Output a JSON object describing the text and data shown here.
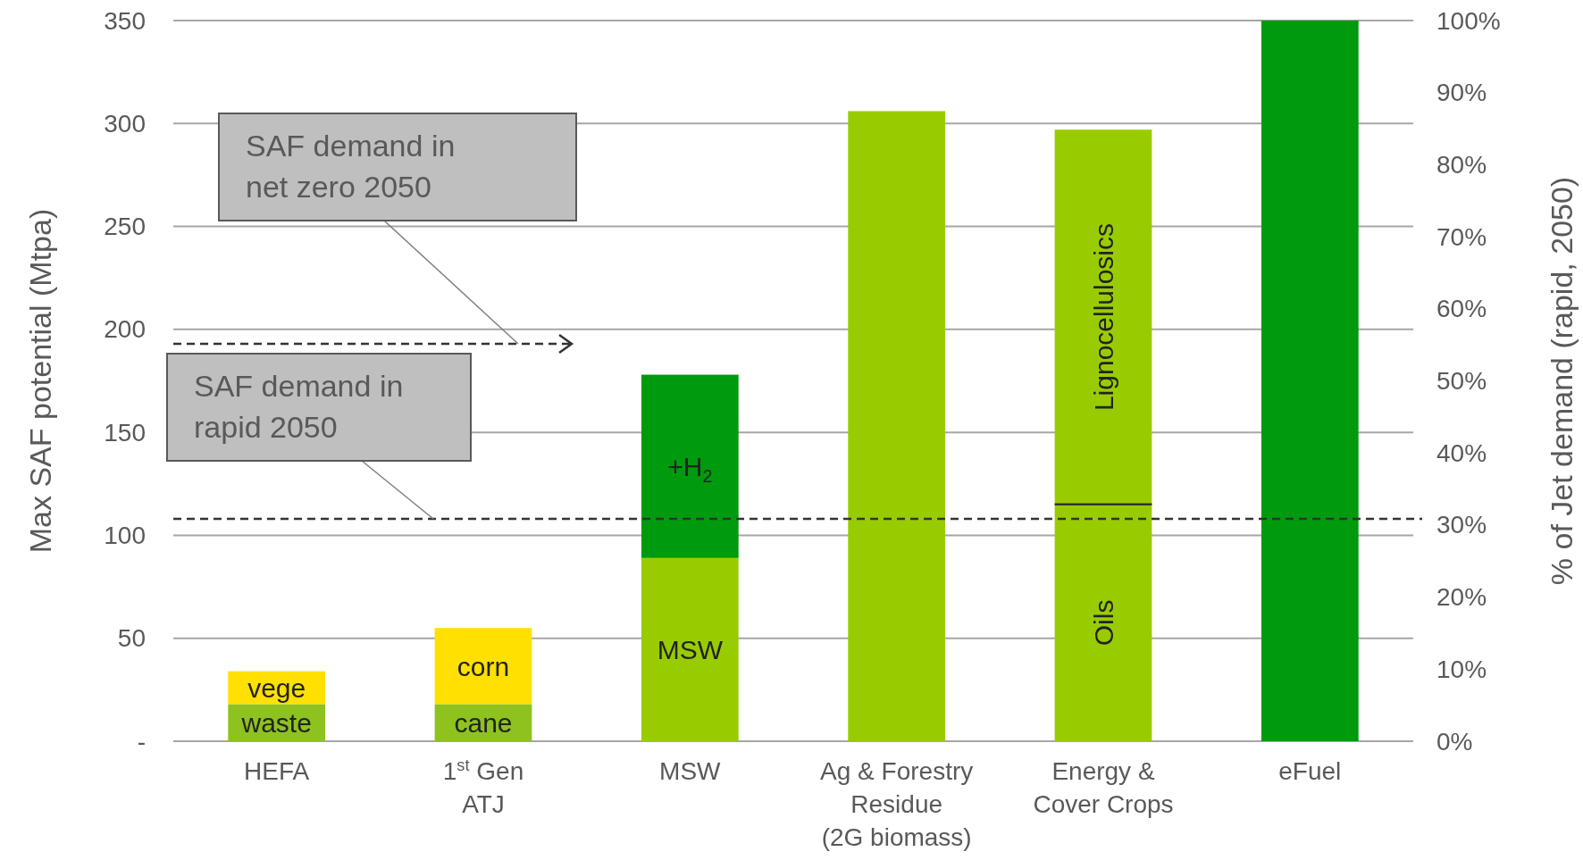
{
  "chart_data": {
    "type": "bar",
    "stacked": true,
    "ylabel": "Max SAF potential (Mtpa)",
    "y2label": "% of Jet demand (rapid, 2050)",
    "categories": [
      "HEFA",
      "1$^{st}$ Gen\nATJ",
      "MSW",
      "Ag & Forestry\nResidue\n(2G biomass)",
      "Energy &\nCover Crops",
      "eFuel"
    ],
    "series": [
      {
        "values": [
          18,
          18,
          89,
          306,
          115,
          350
        ],
        "colors": [
          "#8dc21f",
          "#8dc21f",
          "#99cc00",
          "#99cc00",
          "#99cc00",
          "#009a0e"
        ]
      },
      {
        "values": [
          16,
          37,
          89,
          null,
          182,
          null
        ],
        "colors": [
          "#ffe000",
          "#ffe000",
          "#009a0e",
          null,
          "#99cc00",
          null
        ]
      }
    ],
    "ylim": [
      0,
      350
    ],
    "yticks": [
      {
        "value": 0,
        "label": "-"
      },
      50,
      100,
      150,
      200,
      250,
      300,
      350
    ],
    "y2lim": [
      0,
      100
    ],
    "y2ticks": [
      {
        "value": 0,
        "label": "0%"
      },
      {
        "value": 10,
        "label": "10%"
      },
      {
        "value": 20,
        "label": "20%"
      },
      {
        "value": 30,
        "label": "30%"
      },
      {
        "value": 40,
        "label": "40%"
      },
      {
        "value": 50,
        "label": "50%"
      },
      {
        "value": 60,
        "label": "60%"
      },
      {
        "value": 70,
        "label": "70%"
      },
      {
        "value": 80,
        "label": "80%"
      },
      {
        "value": 90,
        "label": "90%"
      },
      {
        "value": 100,
        "label": "100%"
      }
    ],
    "grid": "y",
    "ref_lines": [
      {
        "axis": "y",
        "value": 108,
        "label": "SAF demand in\nrapid 2050",
        "line_style": "dashed",
        "color": "#333333"
      },
      {
        "axis": "y",
        "value": 193,
        "label": "SAF demand in\nnet zero 2050",
        "line_style": "dashed",
        "color": "#333333"
      }
    ],
    "annotations": [
      "waste",
      "vege",
      "cane",
      "corn",
      "MSW",
      "+H$_{2}$",
      "Oils",
      "Lignocellulosics"
    ]
  }
}
